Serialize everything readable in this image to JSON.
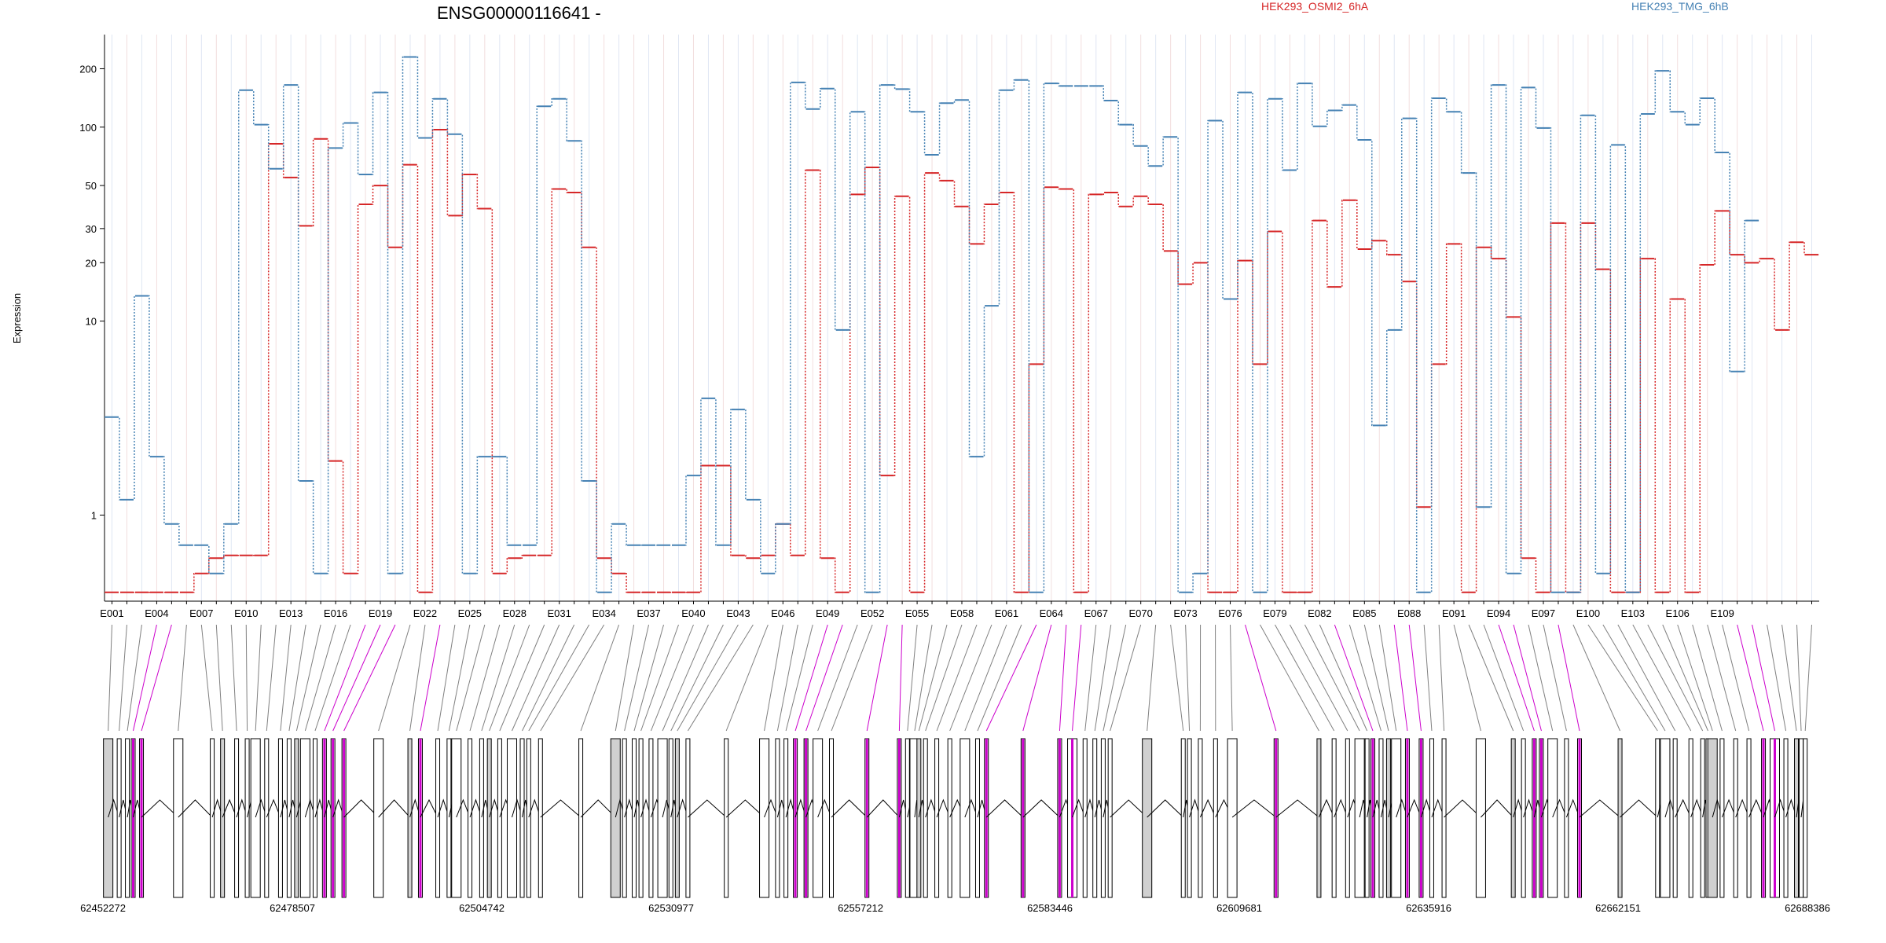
{
  "chart_data": {
    "type": "line",
    "title": "ENSG00000116641 -",
    "ylabel": "Expression",
    "xlabel": "",
    "y_scale": "log",
    "y_ticks": [
      1,
      10,
      20,
      30,
      50,
      100,
      200
    ],
    "ylim": [
      0.36,
      300
    ],
    "grid": "vertical exon guides",
    "legend_placement": "top",
    "series": [
      {
        "name": "HEK293_OSMI2_6hA",
        "color": "#d62728",
        "values": [
          0.4,
          0.4,
          0.4,
          0.4,
          0.4,
          0.4,
          0.5,
          0.6,
          0.62,
          0.62,
          0.62,
          82,
          55,
          31,
          87,
          1.9,
          0.5,
          40,
          50,
          24,
          64,
          0.4,
          97,
          35,
          57,
          38,
          0.5,
          0.6,
          0.62,
          0.62,
          48,
          46,
          24,
          0.6,
          0.5,
          0.4,
          0.4,
          0.4,
          0.4,
          0.4,
          1.8,
          1.8,
          0.62,
          0.6,
          0.62,
          0.9,
          0.62,
          60,
          0.6,
          0.4,
          45,
          62,
          1.6,
          44,
          0.4,
          58,
          53,
          39,
          25,
          40,
          46,
          0.4,
          6,
          49,
          48,
          0.4,
          45,
          46,
          39,
          44,
          40,
          23,
          15.5,
          20,
          0.4,
          0.4,
          20.5,
          6,
          29,
          0.4,
          0.4,
          33,
          15,
          42,
          23.5,
          26,
          22,
          16,
          1.1,
          6,
          25,
          0.4,
          24,
          21,
          10.5,
          0.6,
          0.4,
          32,
          0.4,
          32,
          18.5,
          0.4,
          0.4,
          21,
          0.4,
          13,
          0.4,
          19.5,
          37,
          22,
          20,
          21,
          9,
          25.5,
          22
        ]
      },
      {
        "name": "HEK293_TMG_6hB",
        "color": "#4682b4",
        "values": [
          3.2,
          1.2,
          13.5,
          2,
          0.9,
          0.7,
          0.7,
          0.5,
          0.9,
          155,
          103,
          61,
          165,
          1.5,
          0.5,
          78,
          105,
          57,
          151,
          0.5,
          230,
          88,
          140,
          92,
          0.5,
          2,
          2,
          0.7,
          0.7,
          128,
          140,
          85,
          1.5,
          0.4,
          0.9,
          0.7,
          0.7,
          0.7,
          0.7,
          1.6,
          4,
          0.7,
          3.5,
          1.2,
          0.5,
          0.9,
          170,
          124,
          158,
          9,
          120,
          0.4,
          165,
          157,
          120,
          72,
          133,
          138,
          2,
          12,
          155,
          175,
          0.4,
          168,
          163,
          163,
          163,
          137,
          103,
          80,
          63,
          89,
          0.4,
          0.5,
          108,
          13,
          151,
          0.4,
          140,
          60,
          168,
          101,
          122,
          130,
          86,
          2.9,
          9,
          111,
          0.4,
          141,
          120,
          58,
          1.1,
          165,
          0.5,
          160,
          99,
          0.4,
          0.4,
          115,
          0.5,
          81,
          0.4,
          117,
          195,
          120,
          103,
          141,
          74,
          5.5,
          33
        ]
      }
    ],
    "x_tick_labels": [
      "E001",
      "E004",
      "E007",
      "E010",
      "E013",
      "E016",
      "E019",
      "E022",
      "E025",
      "E028",
      "E031",
      "E034",
      "E037",
      "E040",
      "E043",
      "E046",
      "E049",
      "E052",
      "E055",
      "E058",
      "E061",
      "E064",
      "E067",
      "E070",
      "E073",
      "E076",
      "E079",
      "E082",
      "E085",
      "E088",
      "E091",
      "E094",
      "E097",
      "E100",
      "E103",
      "E106",
      "E109"
    ],
    "genomic_ticks": [
      "62452272",
      "62478507",
      "62504742",
      "62530977",
      "62557212",
      "62583446",
      "62609681",
      "62635916",
      "62662151",
      "62688386"
    ],
    "highlight_color": "#cc00cc",
    "line_color": "#808080",
    "exon_fill": "#d0d0d0"
  }
}
